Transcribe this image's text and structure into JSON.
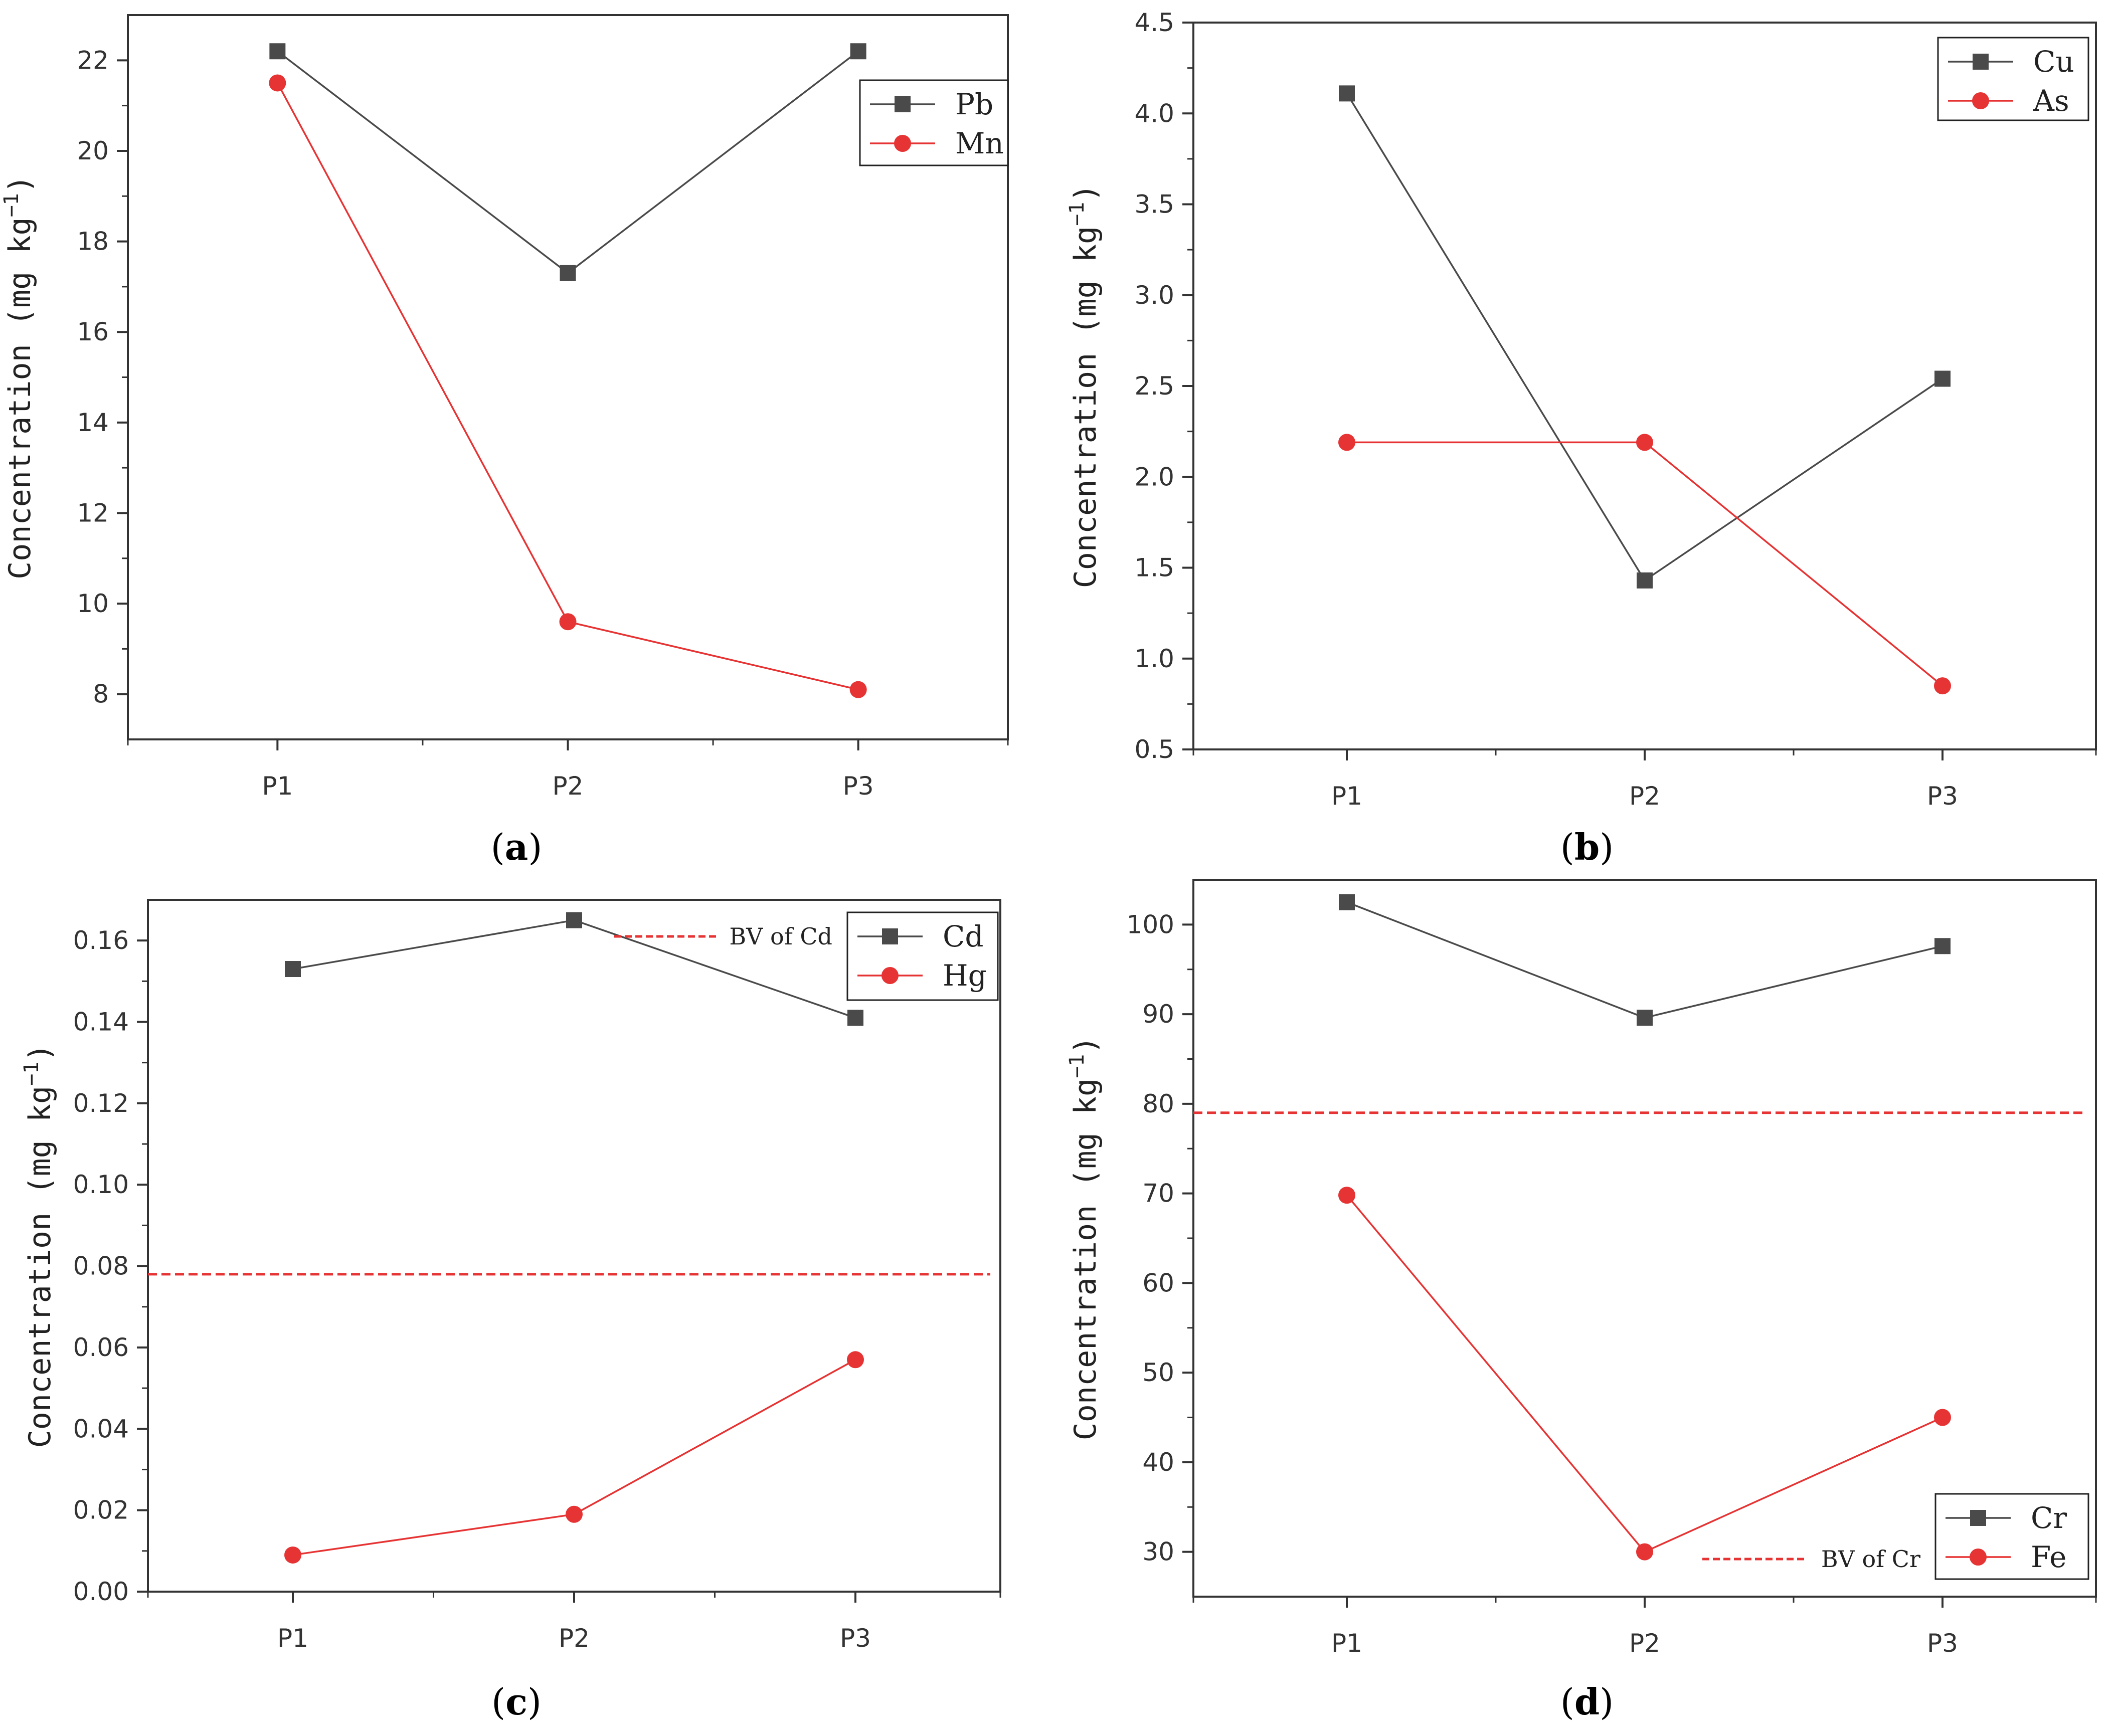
{
  "chart_data": [
    {
      "id": "a",
      "type": "line",
      "panel_label": "a",
      "categories": [
        "P1",
        "P2",
        "P3"
      ],
      "ylabel": "Concentration (mg kg",
      "ylabel_sup": "−1",
      "ylabel_close": ")",
      "ylim": [
        7,
        23
      ],
      "yticks": [
        8,
        10,
        12,
        14,
        16,
        18,
        20,
        22
      ],
      "ytick_labels": [
        "8",
        "10",
        "12",
        "14",
        "16",
        "18",
        "20",
        "22"
      ],
      "series": [
        {
          "name": "Pb",
          "values": [
            22.2,
            17.3,
            22.2
          ],
          "color": "#4a4a4a",
          "marker": "square"
        },
        {
          "name": "Mn",
          "values": [
            21.5,
            9.6,
            8.1
          ],
          "color": "#e63333",
          "marker": "circle"
        }
      ],
      "legend_position": "top-right"
    },
    {
      "id": "b",
      "type": "line",
      "panel_label": "b",
      "categories": [
        "P1",
        "P2",
        "P3"
      ],
      "ylabel": "Concentration (mg kg",
      "ylabel_sup": "−1",
      "ylabel_close": ")",
      "ylim": [
        0.5,
        4.5
      ],
      "yticks": [
        0.5,
        1.0,
        1.5,
        2.0,
        2.5,
        3.0,
        3.5,
        4.0,
        4.5
      ],
      "ytick_labels": [
        "0.5",
        "1.0",
        "1.5",
        "2.0",
        "2.5",
        "3.0",
        "3.5",
        "4.0",
        "4.5"
      ],
      "series": [
        {
          "name": "Cu",
          "values": [
            4.11,
            1.43,
            2.54
          ],
          "color": "#4a4a4a",
          "marker": "square"
        },
        {
          "name": "As",
          "values": [
            2.19,
            2.19,
            0.85
          ],
          "color": "#e63333",
          "marker": "circle"
        }
      ],
      "legend_position": "top-right"
    },
    {
      "id": "c",
      "type": "line",
      "panel_label": "c",
      "categories": [
        "P1",
        "P2",
        "P3"
      ],
      "ylabel": "Concentration (mg kg",
      "ylabel_sup": "−1",
      "ylabel_close": ")",
      "ylim": [
        0.0,
        0.17
      ],
      "yticks": [
        0.0,
        0.02,
        0.04,
        0.06,
        0.08,
        0.1,
        0.12,
        0.14,
        0.16
      ],
      "ytick_labels": [
        "0.00",
        "0.02",
        "0.04",
        "0.06",
        "0.08",
        "0.10",
        "0.12",
        "0.14",
        "0.16"
      ],
      "series": [
        {
          "name": "Cd",
          "values": [
            0.153,
            0.165,
            0.141
          ],
          "color": "#4a4a4a",
          "marker": "square"
        },
        {
          "name": "Hg",
          "values": [
            0.009,
            0.019,
            0.057
          ],
          "color": "#e63333",
          "marker": "circle"
        }
      ],
      "reference_line": {
        "label": "BV of Cd",
        "value": 0.078,
        "color": "#e63333"
      },
      "legend_position": "top-right"
    },
    {
      "id": "d",
      "type": "line",
      "panel_label": "d",
      "categories": [
        "P1",
        "P2",
        "P3"
      ],
      "ylabel": "Concentration (mg kg",
      "ylabel_sup": "−1",
      "ylabel_close": ")",
      "ylim": [
        25,
        105
      ],
      "yticks": [
        30,
        40,
        50,
        60,
        70,
        80,
        90,
        100
      ],
      "ytick_labels": [
        "30",
        "40",
        "50",
        "60",
        "70",
        "80",
        "90",
        "100"
      ],
      "series": [
        {
          "name": "Cr",
          "values": [
            102.5,
            89.6,
            97.6
          ],
          "color": "#4a4a4a",
          "marker": "square"
        },
        {
          "name": "Fe",
          "values": [
            69.8,
            30.0,
            45.0
          ],
          "color": "#e63333",
          "marker": "circle"
        }
      ],
      "reference_line": {
        "label": "BV of Cr",
        "value": 79.0,
        "color": "#e63333"
      },
      "legend_position": "bottom-right"
    }
  ],
  "captions": {
    "a_open": "(",
    "a_label": "a",
    "a_close": ")",
    "b_open": "(",
    "b_label": "b",
    "b_close": ")",
    "c_open": "(",
    "c_label": "c",
    "c_close": ")",
    "d_open": "(",
    "d_label": "d",
    "d_close": ")"
  },
  "colors": {
    "series_dark": "#4a4a4a",
    "series_red": "#e63333",
    "axis": "#333333"
  }
}
